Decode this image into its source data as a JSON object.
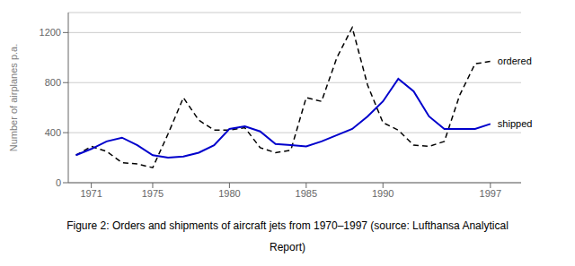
{
  "chart_data": {
    "type": "line",
    "y_label": "Number of airplanes p.a.",
    "caption": [
      "Figure 2: Orders and shipments of aircraft jets from 1970–1997 (source: Lufthansa Analytical",
      "Report)"
    ],
    "x": [
      1970,
      1971,
      1972,
      1973,
      1974,
      1975,
      1976,
      1977,
      1978,
      1979,
      1980,
      1981,
      1982,
      1983,
      1984,
      1985,
      1986,
      1987,
      1988,
      1989,
      1990,
      1991,
      1992,
      1993,
      1994,
      1995,
      1996,
      1997
    ],
    "series": [
      {
        "name": "ordered",
        "color": "#000000",
        "line_style": "dashed",
        "values": [
          220,
          290,
          250,
          160,
          150,
          120,
          390,
          680,
          500,
          420,
          420,
          440,
          280,
          240,
          260,
          680,
          650,
          1000,
          1240,
          780,
          480,
          420,
          300,
          290,
          330,
          700,
          950,
          970
        ]
      },
      {
        "name": "shipped",
        "color": "#0000cc",
        "line_style": "solid",
        "values": [
          220,
          270,
          330,
          360,
          300,
          220,
          200,
          210,
          240,
          300,
          430,
          450,
          410,
          310,
          300,
          290,
          330,
          380,
          430,
          530,
          650,
          830,
          730,
          530,
          430,
          430,
          430,
          470
        ]
      }
    ],
    "xlim": [
      1969.5,
      1999.0
    ],
    "xticks": [
      1971,
      1975,
      1980,
      1985,
      1990,
      1997
    ],
    "ylim": [
      0,
      1360
    ],
    "yticks": [
      0,
      400,
      800,
      1200
    ],
    "grid": true
  }
}
